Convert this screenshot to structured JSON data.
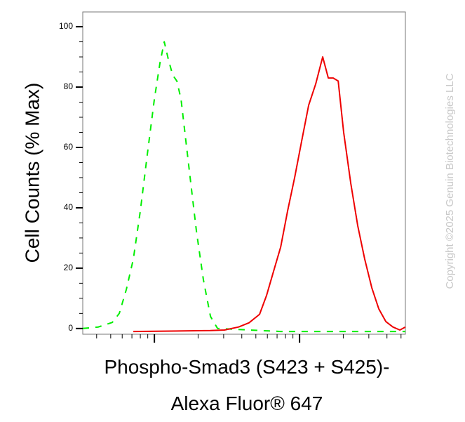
{
  "chart_data": {
    "type": "line",
    "y_label": "Cell Counts (% Max)",
    "x_label_lines": [
      "Phospho-Smad3 (S423 + S425)-",
      "Alexa Fluor® 647"
    ],
    "watermark": "Copyright ©2025 Genuin Biotechnologies LLC",
    "x_scale": "log",
    "xlim": [
      321,
      53580
    ],
    "xticks_major": [
      1000,
      10000
    ],
    "xticks_minor": [
      400,
      500,
      600,
      700,
      800,
      900,
      2000,
      3000,
      4000,
      5000,
      6000,
      7000,
      8000,
      9000,
      20000,
      30000,
      40000,
      50000
    ],
    "ylim": [
      -1.9,
      104.9
    ],
    "yticks": [
      0,
      20,
      40,
      60,
      80,
      100
    ],
    "yticks_minor": [
      5,
      10,
      15,
      25,
      30,
      35,
      45,
      50,
      55,
      65,
      70,
      75,
      85,
      90,
      95
    ],
    "series": [
      {
        "color": "#00ee00",
        "dashed": true,
        "x": [
          321,
          411,
          513,
          573,
          641,
          716,
          800,
          895,
          1000,
          1093,
          1169,
          1250,
          1336,
          1428,
          1526,
          1649,
          1783,
          1950,
          2178,
          2434,
          2722,
          7413,
          22540,
          53580
        ],
        "values": [
          0,
          0.5,
          2,
          5,
          13,
          23,
          39,
          58,
          76,
          88,
          95,
          89,
          84,
          82,
          76,
          62,
          48,
          32,
          16,
          4,
          0,
          -1,
          -1,
          -1
        ]
      },
      {
        "color": "#ee0000",
        "dashed": false,
        "x": [
          716,
          2434,
          3041,
          3802,
          4487,
          5305,
          5929,
          6627,
          7413,
          8279,
          9250,
          10330,
          11560,
          12910,
          14430,
          15780,
          17060,
          18450,
          20140,
          22540,
          25180,
          28120,
          31450,
          35150,
          39270,
          43950,
          49090,
          53580
        ],
        "values": [
          -1,
          -0.7,
          -0.5,
          0.5,
          1.9,
          4.7,
          11,
          19,
          27,
          39,
          50,
          62,
          74,
          81,
          90,
          83,
          83,
          82,
          65,
          48,
          34,
          23,
          13.5,
          6.5,
          2.3,
          0.5,
          -0.5,
          0.5
        ]
      }
    ]
  }
}
